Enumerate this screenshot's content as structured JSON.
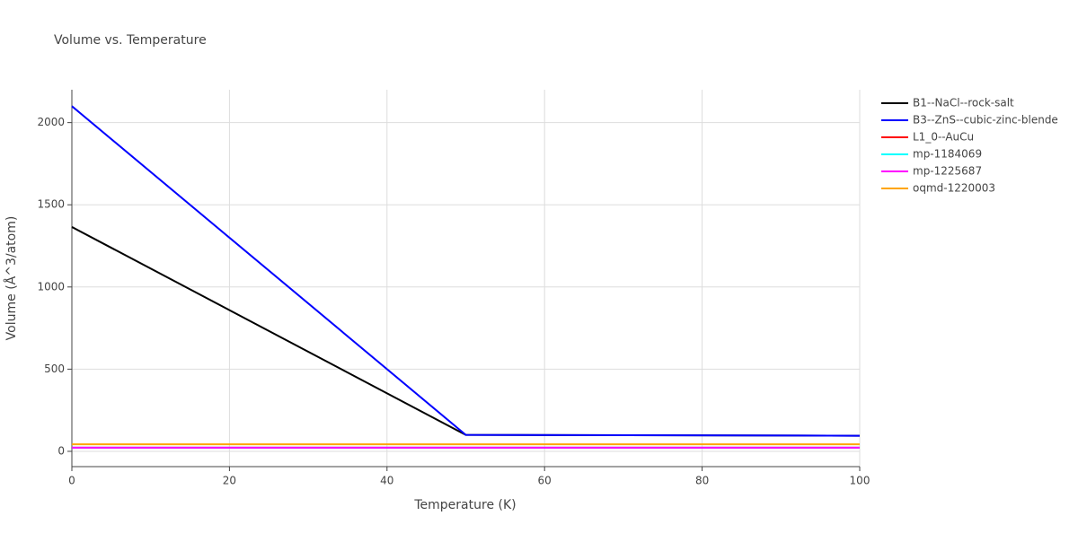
{
  "chart_data": {
    "type": "line",
    "title": "Volume vs. Temperature",
    "x_label": "Temperature (K)",
    "y_label": "Volume (Å^3/atom)",
    "x": [
      0,
      50,
      100
    ],
    "series": [
      {
        "name": "B1--NaCl--rock-salt",
        "color": "#000000",
        "values": [
          1365,
          100,
          95
        ]
      },
      {
        "name": "B3--ZnS--cubic-zinc-blende",
        "color": "#0000ff",
        "values": [
          2100,
          100,
          95
        ]
      },
      {
        "name": "L1_0--AuCu",
        "color": "#ff0000",
        "values": [
          22,
          22,
          22
        ]
      },
      {
        "name": "mp-1184069",
        "color": "#00ffff",
        "values": [
          22,
          22,
          22
        ]
      },
      {
        "name": "mp-1225687",
        "color": "#ff00ff",
        "values": [
          22,
          22,
          22
        ]
      },
      {
        "name": "oqmd-1220003",
        "color": "#ffa500",
        "values": [
          43,
          43,
          43
        ]
      }
    ],
    "xlim": [
      0,
      100
    ],
    "xticks": [
      0,
      20,
      40,
      60,
      80,
      100
    ],
    "ylim": [
      -93,
      2200
    ],
    "yticks": [
      0,
      500,
      1000,
      1500,
      2000
    ],
    "grid": true,
    "legend": "right"
  }
}
